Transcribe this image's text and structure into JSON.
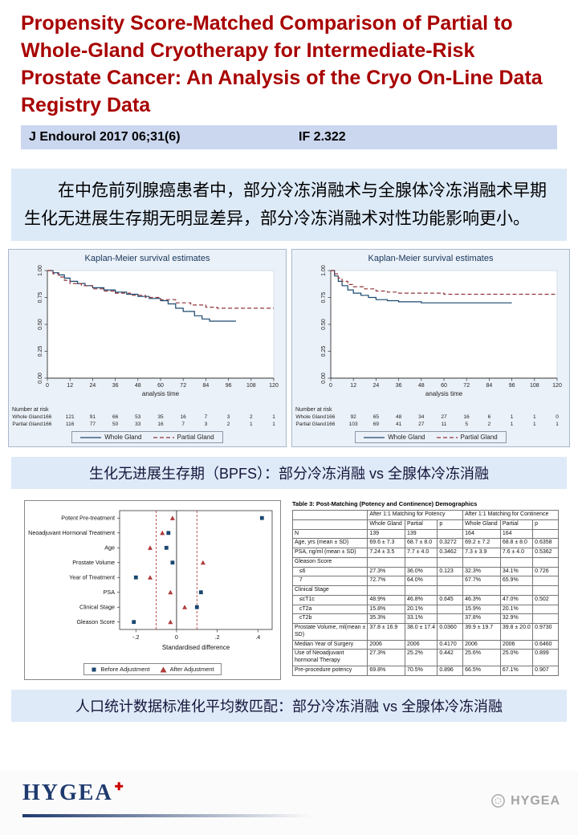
{
  "title": "Propensity Score-Matched Comparison of Partial to Whole-Gland Cryotherapy for Intermediate-Risk Prostate Cancer: An Analysis of the Cryo On-Line Data Registry Data",
  "journal": {
    "citation": "J Endourol 2017 06;31(6)",
    "impact_factor": "IF 2.322"
  },
  "summary_cn": "在中危前列腺癌患者中，部分冷冻消融术与全腺体冷冻消融术早期生化无进展生存期无明显差异，部分冷冻消融术对性功能影响更小。",
  "captions": {
    "km": "生化无进展生存期（BPFS）：部分冷冻消融 vs 全腺体冷冻消融",
    "matching": "人口统计数据标准化平均数匹配：部分冷冻消融 vs 全腺体冷冻消融"
  },
  "footer": {
    "logo_text": "HYGEA",
    "logo_cross": "✚",
    "watermark": "HYGEA"
  },
  "colors": {
    "title_red": "#A80000",
    "journal_band_blue": "#CBD7EF",
    "summary_blue": "#DCE9F7",
    "caption_blue": "#DEEAF8",
    "km_panel_bg": "#EBF1F8",
    "whole_gland_blue": "#1A476F",
    "partial_gland_red": "#90353B",
    "logo_navy": "#1F3A6E",
    "logo_red": "#CC0000",
    "watermark_gray": "#A3A3A3"
  },
  "chart_data": [
    {
      "type": "line",
      "title": "Kaplan-Meier survival estimates",
      "xlabel": "analysis time",
      "ylabel": "",
      "xlim": [
        0,
        120
      ],
      "ylim": [
        0,
        1
      ],
      "xticks": [
        0,
        12,
        24,
        36,
        48,
        60,
        72,
        84,
        96,
        108,
        120
      ],
      "yticks": [
        "0.00",
        "0.25",
        "0.50",
        "0.75",
        "1.00"
      ],
      "step": true,
      "grid": false,
      "legend_position": "bottom",
      "series": [
        {
          "name": "Whole Gland",
          "color": "#1A476F",
          "dash": false,
          "points": [
            [
              0,
              1.0
            ],
            [
              3,
              0.98
            ],
            [
              6,
              0.96
            ],
            [
              9,
              0.93
            ],
            [
              12,
              0.9
            ],
            [
              16,
              0.88
            ],
            [
              20,
              0.86
            ],
            [
              24,
              0.84
            ],
            [
              30,
              0.82
            ],
            [
              36,
              0.8
            ],
            [
              42,
              0.78
            ],
            [
              48,
              0.76
            ],
            [
              54,
              0.74
            ],
            [
              60,
              0.72
            ],
            [
              64,
              0.69
            ],
            [
              68,
              0.65
            ],
            [
              72,
              0.62
            ],
            [
              78,
              0.58
            ],
            [
              82,
              0.55
            ],
            [
              86,
              0.53
            ],
            [
              100,
              0.53
            ]
          ]
        },
        {
          "name": "Partial Gland",
          "color": "#90353B",
          "dash": true,
          "points": [
            [
              0,
              1.0
            ],
            [
              3,
              0.97
            ],
            [
              6,
              0.94
            ],
            [
              9,
              0.91
            ],
            [
              12,
              0.88
            ],
            [
              18,
              0.86
            ],
            [
              24,
              0.83
            ],
            [
              30,
              0.81
            ],
            [
              36,
              0.79
            ],
            [
              44,
              0.77
            ],
            [
              52,
              0.75
            ],
            [
              60,
              0.73
            ],
            [
              68,
              0.7
            ],
            [
              76,
              0.68
            ],
            [
              84,
              0.66
            ],
            [
              90,
              0.65
            ],
            [
              120,
              0.65
            ]
          ]
        }
      ],
      "number_at_risk": {
        "label": "Number at risk",
        "rows": [
          {
            "name": "Whole Gland",
            "values": [
              166,
              121,
              91,
              66,
              53,
              35,
              16,
              7,
              3,
              2,
              1
            ]
          },
          {
            "name": "Partial Gland",
            "values": [
              166,
              116,
              77,
              50,
              33,
              16,
              7,
              3,
              2,
              1,
              1
            ]
          }
        ]
      }
    },
    {
      "type": "line",
      "title": "Kaplan-Meier survival estimates",
      "xlabel": "analysis time",
      "ylabel": "",
      "xlim": [
        0,
        120
      ],
      "ylim": [
        0,
        1
      ],
      "xticks": [
        0,
        12,
        24,
        36,
        48,
        60,
        72,
        84,
        96,
        108,
        120
      ],
      "yticks": [
        "0.00",
        "0.25",
        "0.50",
        "0.75",
        "1.00"
      ],
      "step": true,
      "grid": false,
      "legend_position": "bottom",
      "series": [
        {
          "name": "Whole Gland",
          "color": "#1A476F",
          "dash": false,
          "points": [
            [
              0,
              1.0
            ],
            [
              2,
              0.95
            ],
            [
              4,
              0.9
            ],
            [
              6,
              0.86
            ],
            [
              9,
              0.82
            ],
            [
              12,
              0.79
            ],
            [
              16,
              0.77
            ],
            [
              20,
              0.75
            ],
            [
              24,
              0.73
            ],
            [
              30,
              0.72
            ],
            [
              36,
              0.71
            ],
            [
              48,
              0.7
            ],
            [
              96,
              0.7
            ]
          ]
        },
        {
          "name": "Partial Gland",
          "color": "#90353B",
          "dash": true,
          "points": [
            [
              0,
              1.0
            ],
            [
              2,
              0.97
            ],
            [
              4,
              0.93
            ],
            [
              6,
              0.9
            ],
            [
              9,
              0.87
            ],
            [
              12,
              0.85
            ],
            [
              18,
              0.83
            ],
            [
              24,
              0.81
            ],
            [
              30,
              0.8
            ],
            [
              36,
              0.79
            ],
            [
              48,
              0.79
            ],
            [
              60,
              0.78
            ],
            [
              120,
              0.78
            ]
          ]
        }
      ],
      "number_at_risk": {
        "label": "Number at risk",
        "rows": [
          {
            "name": "Whole Gland",
            "values": [
              166,
              92,
              65,
              48,
              34,
              27,
              16,
              6,
              1,
              1,
              0
            ]
          },
          {
            "name": "Partial Gland",
            "values": [
              166,
              103,
              69,
              41,
              27,
              11,
              5,
              2,
              1,
              1,
              1
            ]
          }
        ]
      }
    },
    {
      "type": "scatter",
      "title": "",
      "xlabel": "Standardised difference",
      "xlim": [
        -0.28,
        0.47
      ],
      "xticks": [
        -0.2,
        0,
        0.2,
        0.4
      ],
      "xtick_labels": [
        "-.2",
        "0",
        ".2",
        ".4"
      ],
      "ref_solid": 0,
      "ref_dashed": [
        -0.1,
        0.1
      ],
      "legend_position": "bottom",
      "categories": [
        "Potent Pre-treatment",
        "Neoadjuvant Hormonal Treatment",
        "Age",
        "Prostate Volume",
        "Year of Treatment",
        "PSA",
        "Clinical Stage",
        "Gleason Score"
      ],
      "series": [
        {
          "name": "Before Adjustment",
          "marker": "square",
          "color": "#1A476F",
          "values": [
            0.42,
            -0.04,
            -0.05,
            -0.02,
            -0.2,
            0.12,
            0.1,
            -0.21
          ]
        },
        {
          "name": "After Adjustment",
          "marker": "triangle",
          "color": "#B03A3A",
          "values": [
            -0.02,
            -0.07,
            -0.13,
            0.13,
            -0.13,
            -0.03,
            0.04,
            -0.03
          ]
        }
      ]
    },
    {
      "type": "table",
      "title": "Table 3: Post-Matching (Potency and Continence) Demographics",
      "col_groups": [
        "",
        "After 1:1 Matching for Potency",
        "After 1:1 Matching for Continence"
      ],
      "columns": [
        "",
        "Whole Gland",
        "Partial",
        "p",
        "Whole Gland",
        "Partial",
        "p"
      ],
      "rows": [
        [
          "N",
          "139",
          "139",
          "",
          "164",
          "164",
          ""
        ],
        [
          "Age, yrs (mean ± SD)",
          "69.6 ± 7.3",
          "68.7 ± 8.0",
          "0.3272",
          "69.2 ± 7.2",
          "68.8 ± 8.0",
          "0.6358"
        ],
        [
          "PSA, ng/ml (mean ± SD)",
          "7.24 ± 3.5",
          "7.7 ± 4.0",
          "0.3462",
          "7.3 ± 3.9",
          "7.6 ± 4.0",
          "0.5362"
        ],
        [
          "Gleason Score",
          "",
          "",
          "",
          "",
          "",
          ""
        ],
        [
          "   ≤6",
          "27.3%",
          "36.0%",
          "0.123",
          "32.3%",
          "34.1%",
          "0.726"
        ],
        [
          "   7",
          "72.7%",
          "64.0%",
          "",
          "67.7%",
          "65.9%",
          ""
        ],
        [
          "Clinical Stage",
          "",
          "",
          "",
          "",
          "",
          ""
        ],
        [
          "   ≤cT1c",
          "48.9%",
          "46.8%",
          "0.645",
          "46.3%",
          "47.0%",
          "0.502"
        ],
        [
          "   cT2a",
          "15.8%",
          "20.1%",
          "",
          "15.9%",
          "20.1%",
          ""
        ],
        [
          "   cT2b",
          "35.3%",
          "33.1%",
          "",
          "37.8%",
          "32.9%",
          ""
        ],
        [
          "Prostate Volume, ml(mean ± SD)",
          "37.8 ± 16.9",
          "38.0 ± 17.4",
          "0.0360",
          "39.9 ± 19.7",
          "39.8 ± 20.0",
          "0.9730"
        ],
        [
          "Median Year of Surgery",
          "2006",
          "2006",
          "0.4170",
          "2006",
          "2006",
          "0.6460"
        ],
        [
          "Use of Neoadjuvant hormonal Therapy",
          "27.3%",
          "25.2%",
          "0.442",
          "25.6%",
          "25.0%",
          "0.899"
        ],
        [
          "Pre-procedure potency",
          "69.8%",
          "70.5%",
          "0.896",
          "66.5%",
          "67.1%",
          "0.907"
        ]
      ]
    }
  ]
}
